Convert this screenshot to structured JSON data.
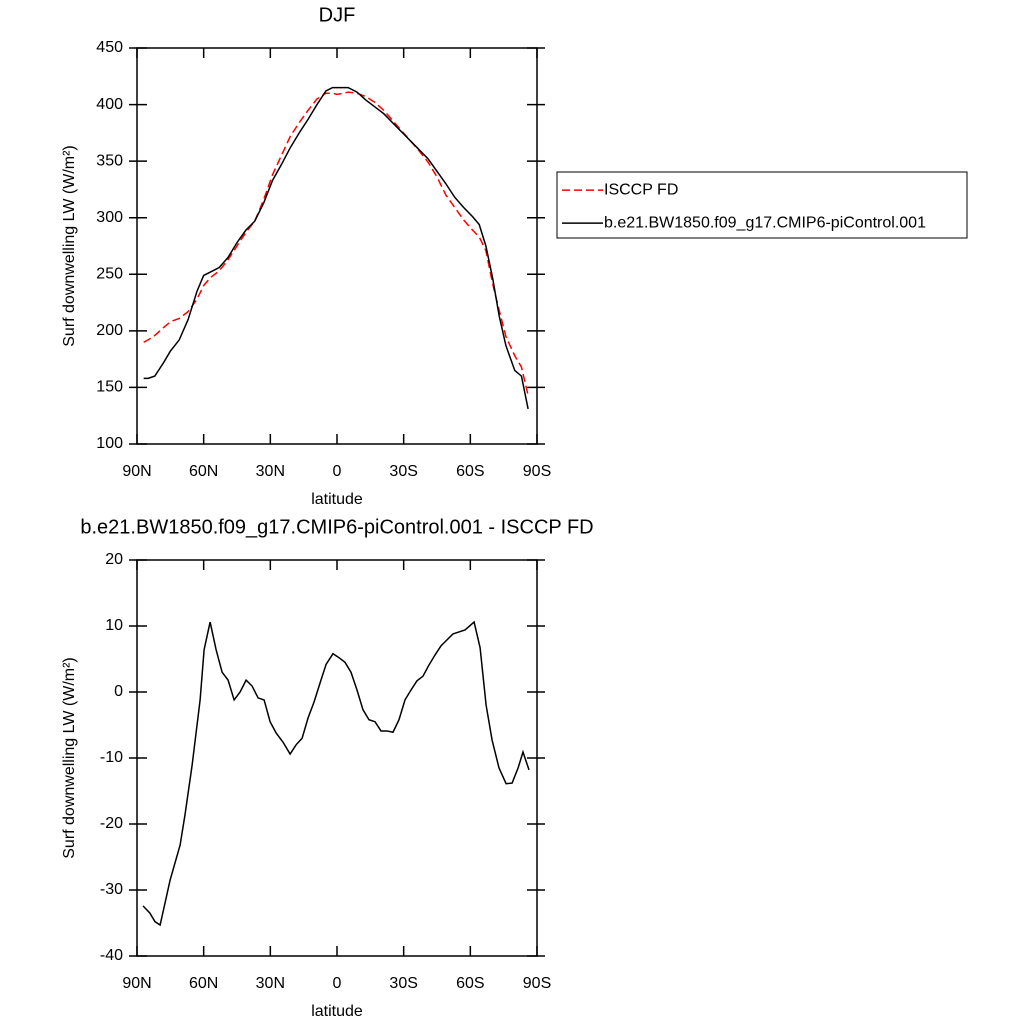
{
  "chart_data": [
    {
      "type": "line",
      "title": "DJF",
      "xlabel": "latitude",
      "ylabel": "Surf downwelling LW (W/m²)",
      "x": [
        87,
        85,
        82,
        78,
        75,
        71,
        67,
        63,
        60,
        57,
        53,
        49,
        45,
        41,
        37,
        33,
        29,
        25,
        21,
        17,
        13,
        9,
        5,
        2,
        0,
        -3,
        -5,
        -9,
        -13,
        -17,
        -21,
        -25,
        -29,
        -33,
        -37,
        -41,
        -45,
        -49,
        -53,
        -57,
        -61,
        -64,
        -67,
        -70,
        -73,
        -76,
        -80,
        -83,
        -86
      ],
      "series": [
        {
          "name": "ISCCP FD",
          "color": "#ff0000",
          "line_style": "dashed",
          "values": [
            190,
            192,
            196,
            203,
            208,
            211,
            217,
            228,
            240,
            247,
            253,
            263,
            275,
            287,
            297,
            316,
            338,
            355,
            372,
            384,
            395,
            405,
            410,
            410,
            409,
            410,
            411,
            410,
            407,
            402,
            395,
            386,
            377,
            368,
            359,
            349,
            336,
            320,
            309,
            298,
            289,
            283,
            271,
            242,
            218,
            195,
            178,
            168,
            143
          ]
        },
        {
          "name": "b.e21.BW1850.f09_g17.CMIP6-piControl.001",
          "color": "#000000",
          "line_style": "solid",
          "values": [
            158,
            158,
            160,
            172,
            182,
            192,
            210,
            235,
            249,
            252,
            256,
            265,
            278,
            289,
            297,
            313,
            333,
            347,
            362,
            375,
            387,
            400,
            412,
            415,
            415,
            415,
            415,
            411,
            404,
            398,
            392,
            384,
            376,
            368,
            360,
            352,
            341,
            330,
            318,
            309,
            301,
            294,
            275,
            247,
            213,
            187,
            165,
            160,
            131
          ]
        }
      ],
      "xlim": [
        90,
        -90
      ],
      "xticks": [
        {
          "value": 90,
          "label": "90N"
        },
        {
          "value": 60,
          "label": "60N"
        },
        {
          "value": 30,
          "label": "30N"
        },
        0,
        {
          "value": -30,
          "label": "30S"
        },
        {
          "value": -60,
          "label": "60S"
        },
        {
          "value": -90,
          "label": "90S"
        }
      ],
      "ylim": [
        100,
        450
      ],
      "yticks": [
        100,
        150,
        200,
        250,
        300,
        350,
        400,
        450
      ],
      "legend": "right"
    },
    {
      "type": "line",
      "title": "b.e21.BW1850.f09_g17.CMIP6-piControl.001 - ISCCP FD",
      "xlabel": "latitude",
      "ylabel": "Surf downwelling LW (W/m²)",
      "x": [
        87.3,
        84.2,
        81.9,
        79.6,
        75.1,
        70.6,
        68.4,
        65.2,
        61.6,
        59.8,
        57.1,
        54.4,
        51.7,
        49.0,
        46.3,
        43.6,
        40.9,
        38.2,
        35.5,
        32.8,
        30.1,
        27.4,
        24.3,
        21.1,
        18.4,
        15.7,
        13.0,
        10.3,
        7.6,
        4.9,
        1.8,
        -0.9,
        -3.6,
        -6.3,
        -9.0,
        -11.7,
        -14.4,
        -17.1,
        -19.8,
        -22.5,
        -25.2,
        -27.9,
        -30.6,
        -33.3,
        -36.0,
        -38.7,
        -41.4,
        -44.1,
        -46.8,
        -49.5,
        -52.2,
        -54.9,
        -57.6,
        -61.7,
        -64.4,
        -67.1,
        -69.8,
        -72.9,
        -76.1,
        -78.8,
        -81.5,
        -83.7,
        -86.4
      ],
      "color": "#000000",
      "values": [
        -32.4,
        -33.5,
        -34.8,
        -35.3,
        -28.5,
        -23.2,
        -18.6,
        -11.1,
        -1.2,
        6.4,
        10.6,
        6.4,
        3.0,
        1.8,
        -1.2,
        0.0,
        1.8,
        0.9,
        -0.9,
        -1.2,
        -4.5,
        -6.2,
        -7.6,
        -9.4,
        -8.0,
        -7.0,
        -3.9,
        -1.5,
        1.4,
        4.2,
        5.8,
        5.2,
        4.5,
        3.0,
        0.3,
        -2.7,
        -4.2,
        -4.5,
        -5.9,
        -5.9,
        -6.1,
        -4.2,
        -1.2,
        0.3,
        1.7,
        2.4,
        4.1,
        5.6,
        7.0,
        7.9,
        8.8,
        9.1,
        9.4,
        10.6,
        6.7,
        -2.0,
        -7.3,
        -11.5,
        -13.9,
        -13.8,
        -11.5,
        -9.1,
        -11.8
      ],
      "xlim": [
        90,
        -90
      ],
      "xticks": [
        {
          "value": 90,
          "label": "90N"
        },
        {
          "value": 60,
          "label": "60N"
        },
        {
          "value": 30,
          "label": "30N"
        },
        0,
        {
          "value": -30,
          "label": "30S"
        },
        {
          "value": -60,
          "label": "60S"
        },
        {
          "value": -90,
          "label": "90S"
        }
      ],
      "ylim": [
        -40,
        20
      ],
      "yticks": [
        -40,
        -30,
        -20,
        -10,
        0,
        10,
        20
      ]
    }
  ]
}
